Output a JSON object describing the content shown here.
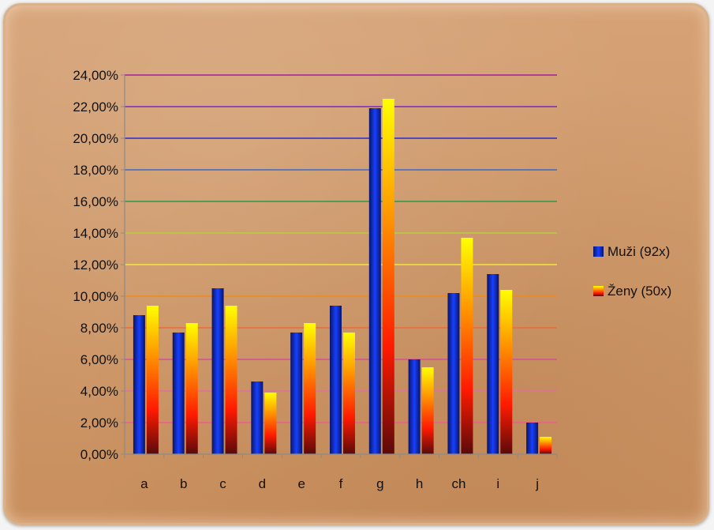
{
  "chart_data": {
    "type": "bar",
    "title": "",
    "xlabel": "",
    "ylabel": "",
    "categories": [
      "a",
      "b",
      "c",
      "d",
      "e",
      "f",
      "g",
      "h",
      "ch",
      "i",
      "j"
    ],
    "series": [
      {
        "name": "Muži (92x)",
        "values": [
          8.8,
          7.7,
          10.5,
          4.6,
          7.7,
          9.4,
          21.9,
          6.0,
          10.2,
          11.4,
          2.0
        ]
      },
      {
        "name": "Ženy (50x)",
        "values": [
          9.4,
          8.3,
          9.4,
          3.9,
          8.3,
          7.7,
          22.5,
          5.5,
          13.7,
          10.4,
          1.1
        ]
      }
    ],
    "ylim": [
      0,
      24
    ],
    "y_ticks": [
      "0,00%",
      "2,00%",
      "4,00%",
      "6,00%",
      "8,00%",
      "10,00%",
      "12,00%",
      "14,00%",
      "16,00%",
      "18,00%",
      "20,00%",
      "22,00%",
      "24,00%"
    ],
    "grid": true,
    "legend_position": "right",
    "gridline_colors": [
      "#ee5a92",
      "#ee5a92",
      "#e06fa0",
      "#d34f9a",
      "#ee6a3a",
      "#f08a1a",
      "#f2e53a",
      "#b5cf3a",
      "#2a9a4a",
      "#3a6ac8",
      "#2a2ad0",
      "#7a2ac0",
      "#a020a0"
    ],
    "colors": {
      "muzi": [
        "#0a1466",
        "#1640ff"
      ],
      "zeny": [
        "#5a0a0a",
        "#ff0000",
        "#ffa000",
        "#ffff00"
      ]
    }
  }
}
